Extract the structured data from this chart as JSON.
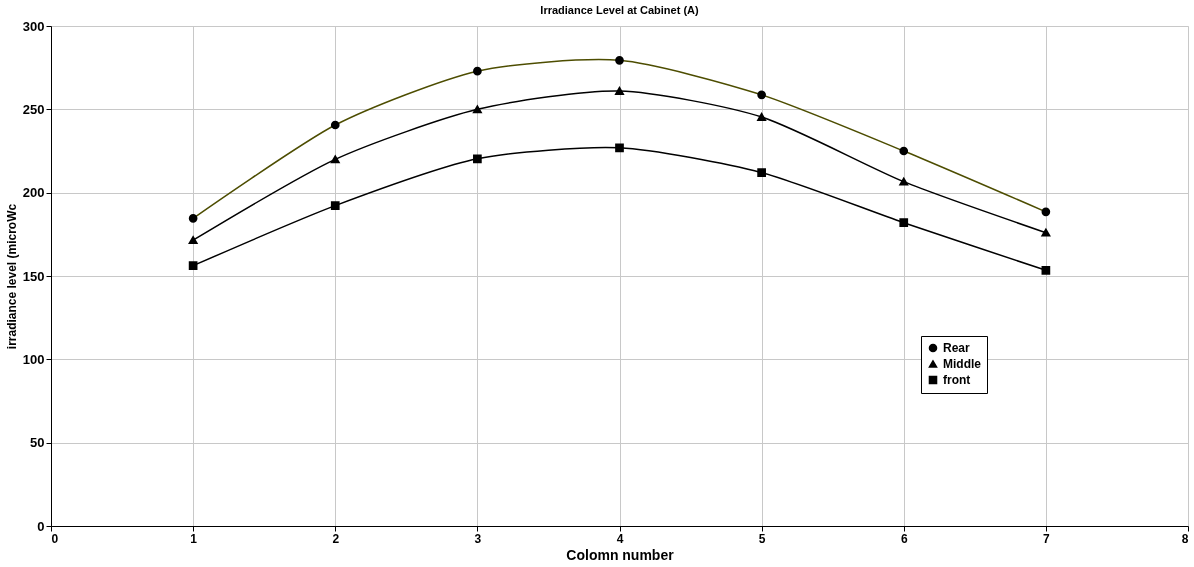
{
  "chart_data": {
    "type": "line",
    "title": "Irradiance Level at Cabinet (A)",
    "xlabel": "Colomn number",
    "ylabel": "irradiance level (microWc",
    "x": [
      1,
      2,
      3,
      4,
      5,
      6,
      7
    ],
    "xlim": [
      0,
      8
    ],
    "xticks": [
      0,
      1,
      2,
      3,
      4,
      5,
      6,
      7,
      8
    ],
    "ylim": [
      0,
      300
    ],
    "yticks": [
      0,
      50,
      100,
      150,
      200,
      250,
      300
    ],
    "grid": true,
    "legend": "right",
    "line_style": "solid",
    "series": [
      {
        "name": "Rear",
        "color": "#4d4d00",
        "marker": "circle",
        "values": [
          184.6,
          240.6,
          272.9,
          279.4,
          258.7,
          225,
          188.5
        ]
      },
      {
        "name": "Middle",
        "color": "#000000",
        "marker": "triangle",
        "values": [
          171.5,
          220,
          250,
          261,
          245.4,
          206.6,
          176
        ]
      },
      {
        "name": "front",
        "color": "#000000",
        "marker": "square",
        "values": [
          156.2,
          192.2,
          220.3,
          226.9,
          212,
          182,
          153.4
        ]
      }
    ]
  }
}
